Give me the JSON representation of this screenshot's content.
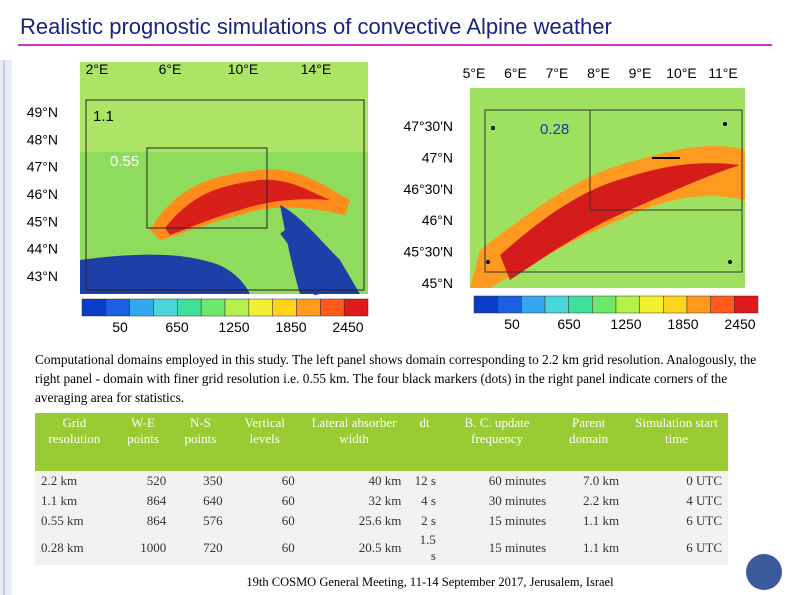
{
  "title": "Realistic prognostic simulations of convective Alpine weather",
  "left_map": {
    "x_labels": [
      "2°E",
      "6°E",
      "10°E",
      "14°E"
    ],
    "y_labels": [
      "49°N",
      "48°N",
      "47°N",
      "46°N",
      "45°N",
      "44°N",
      "43°N"
    ],
    "box_labels": [
      "1.1",
      "0.55"
    ],
    "colorbar_labels": [
      "50",
      "650",
      "1250",
      "1850",
      "2450"
    ]
  },
  "right_map": {
    "x_labels": [
      "5°E",
      "6°E",
      "7°E",
      "8°E",
      "9°E",
      "10°E",
      "11°E"
    ],
    "y_labels": [
      "47°30'N",
      "47°N",
      "46°30'N",
      "46°N",
      "45°30'N",
      "45°N"
    ],
    "box_labels": [
      "0.28"
    ],
    "colorbar_labels": [
      "50",
      "650",
      "1250",
      "1850",
      "2450"
    ]
  },
  "caption": "Computational domains employed in this study. The left panel shows domain corresponding to 2.2 km grid resolution. Analogously, the right panel - domain with finer grid resolution i.e. 0.55 km. The four black markers (dots) in the right panel indicate corners of the averaging area for statistics.",
  "table": {
    "header": [
      "Grid resolution",
      "W-E points",
      "N-S points",
      "Vertical levels",
      "Lateral absorber width",
      "dt",
      "B. C. update frequency",
      "Parent domain",
      "Simulation start time"
    ],
    "rows": [
      [
        "2.2 km",
        "520",
        "350",
        "60",
        "40 km",
        "12 s",
        "60 minutes",
        "7.0 km",
        "0 UTC"
      ],
      [
        "1.1 km",
        "864",
        "640",
        "60",
        "32 km",
        "4 s",
        "30 minutes",
        "2.2 km",
        "4 UTC"
      ],
      [
        "0.55 km",
        "864",
        "576",
        "60",
        "25.6 km",
        "2 s",
        "15 minutes",
        "1.1 km",
        "6 UTC"
      ],
      [
        "0.28 km",
        "1000",
        "720",
        "60",
        "20.5 km",
        "1.5 s",
        "15 minutes",
        "1.1 km",
        "6 UTC"
      ]
    ]
  },
  "footer": "19th COSMO General Meeting, 11-14 September 2017, Jerusalem, Israel"
}
